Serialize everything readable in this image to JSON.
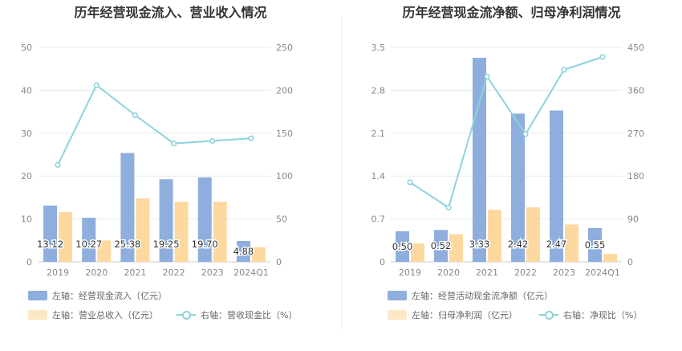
{
  "chart_data": [
    {
      "type": "bar",
      "title": "历年经营现金流入、营业收入情况",
      "categories": [
        "2019",
        "2020",
        "2021",
        "2022",
        "2023",
        "2024Q1"
      ],
      "y_left_ticks": [
        "0",
        "10",
        "20",
        "30",
        "40",
        "50"
      ],
      "y_right_ticks": [
        "0",
        "50",
        "100",
        "150",
        "200",
        "250"
      ],
      "ylim_left": [
        0,
        50
      ],
      "ylim_right": [
        0,
        250
      ],
      "grid": true,
      "legend_position": "bottom-left",
      "series": [
        {
          "name": "左轴：经营现金流入（亿元）",
          "axis": "left",
          "kind": "bar",
          "color": "#8eaedd",
          "values": [
            13.12,
            10.27,
            25.38,
            19.25,
            19.7,
            4.88
          ],
          "labels": [
            "13.12",
            "10.27",
            "25.38",
            "19.25",
            "19.70",
            "4.88"
          ]
        },
        {
          "name": "左轴：营业总收入（亿元）",
          "axis": "left",
          "kind": "bar",
          "color": "#fdd9a0",
          "values": [
            11.6,
            5.0,
            14.8,
            14.0,
            14.0,
            3.4
          ]
        },
        {
          "name": "右轴：营收现金比（%）",
          "axis": "right",
          "kind": "line",
          "color": "#8dd3dc",
          "values": [
            113,
            206,
            171,
            138,
            141,
            144
          ]
        }
      ]
    },
    {
      "type": "bar",
      "title": "历年经营现金流净额、归母净利润情况",
      "categories": [
        "2019",
        "2020",
        "2021",
        "2022",
        "2023",
        "2024Q1"
      ],
      "y_left_ticks": [
        "0",
        "0.7",
        "1.4",
        "2.1",
        "2.8",
        "3.5"
      ],
      "y_right_ticks": [
        "0",
        "90",
        "180",
        "270",
        "360",
        "450"
      ],
      "ylim_left": [
        0,
        3.5
      ],
      "ylim_right": [
        0,
        450
      ],
      "grid": true,
      "legend_position": "bottom-left",
      "series": [
        {
          "name": "左轴：经营活动现金流净额（亿元）",
          "axis": "left",
          "kind": "bar",
          "color": "#8eaedd",
          "values": [
            0.5,
            0.52,
            3.33,
            2.42,
            2.47,
            0.55
          ],
          "labels": [
            "0.50",
            "0.52",
            "3.33",
            "2.42",
            "2.47",
            "0.55"
          ]
        },
        {
          "name": "左轴：归母净利润（亿元）",
          "axis": "left",
          "kind": "bar",
          "color": "#fdd9a0",
          "values": [
            0.3,
            0.45,
            0.85,
            0.89,
            0.61,
            0.13
          ]
        },
        {
          "name": "右轴：净现比（%）",
          "axis": "right",
          "kind": "line",
          "color": "#8dd3dc",
          "values": [
            167,
            114,
            389,
            268,
            403,
            430
          ]
        }
      ]
    }
  ]
}
